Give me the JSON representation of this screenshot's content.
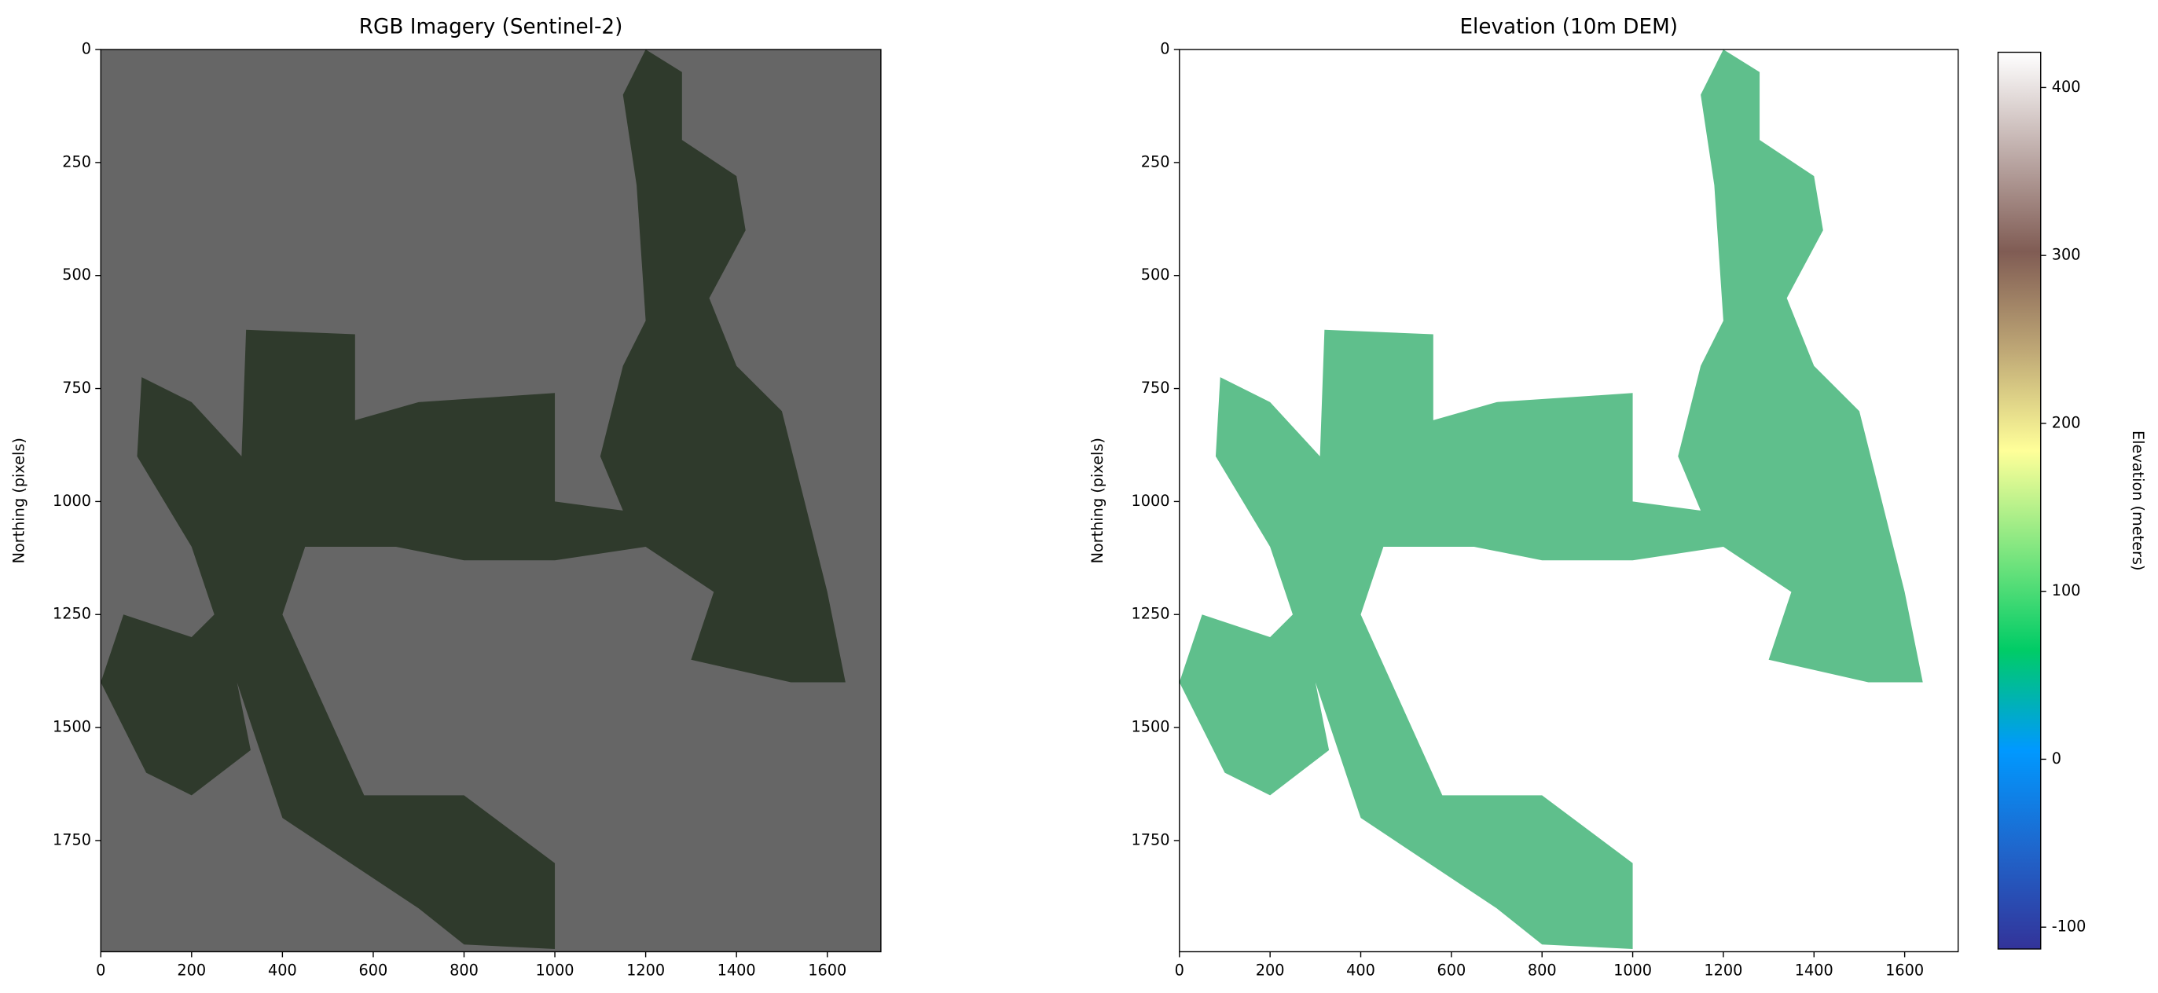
{
  "chart_data": [
    {
      "type": "image",
      "title": "RGB Imagery (Sentinel-2)",
      "ylabel": "Northing (pixels)",
      "xlim": [
        0,
        1718
      ],
      "ylim": [
        1996,
        0
      ],
      "xticks": [
        0,
        200,
        400,
        600,
        800,
        1000,
        1200,
        1400,
        1600
      ],
      "yticks": [
        0,
        250,
        500,
        750,
        1000,
        1250,
        1500,
        1750
      ],
      "background": "#666666",
      "color": "#2f3a2c"
    },
    {
      "type": "image",
      "title": "Elevation (10m DEM)",
      "ylabel": "Northing (pixels)",
      "xlim": [
        0,
        1718
      ],
      "ylim": [
        1996,
        0
      ],
      "xticks": [
        0,
        200,
        400,
        600,
        800,
        1000,
        1200,
        1400,
        1600
      ],
      "yticks": [
        0,
        250,
        500,
        750,
        1000,
        1250,
        1500,
        1750
      ],
      "background": "#ffffff",
      "color": "#5fbf8c",
      "colorbar": {
        "label": "Elevation (meters)",
        "lim": [
          -113,
          421
        ],
        "ticks": [
          -100,
          0,
          100,
          200,
          300,
          400
        ],
        "colors": [
          "#333399",
          "#1f66cc",
          "#0099ff",
          "#00cc66",
          "#80e680",
          "#ffff99",
          "#bfa876",
          "#805c54",
          "#bfadaa",
          "#ffffff"
        ]
      }
    }
  ]
}
